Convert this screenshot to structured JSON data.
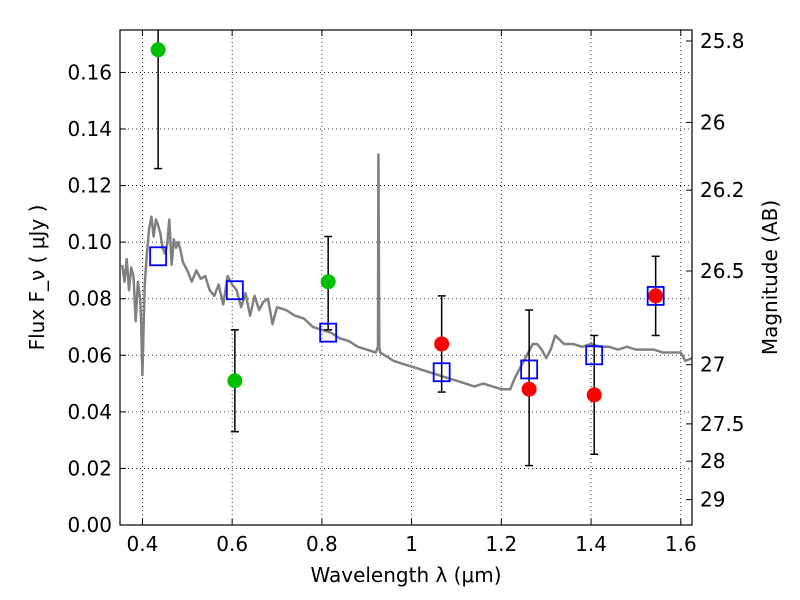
{
  "chart_data": {
    "type": "scatter",
    "xlabel": "Wavelength  λ (μm)",
    "ylabel": "Flux  F_ν  ( μJy )",
    "y2label": "Magnitude (AB)",
    "xlim": [
      0.35,
      1.625
    ],
    "ylim": [
      0.0,
      0.175
    ],
    "grid": true,
    "x_ticks": [
      "0.4",
      "0.6",
      "0.8",
      "1",
      "1.2",
      "1.4",
      "1.6"
    ],
    "x_tick_values": [
      0.4,
      0.6,
      0.8,
      1.0,
      1.2,
      1.4,
      1.6
    ],
    "y_ticks": [
      "0.00",
      "0.02",
      "0.04",
      "0.06",
      "0.08",
      "0.10",
      "0.12",
      "0.14",
      "0.16"
    ],
    "y_tick_values": [
      0.0,
      0.02,
      0.04,
      0.06,
      0.08,
      0.1,
      0.12,
      0.14,
      0.16
    ],
    "mag_ticks": [
      "25.8",
      "26",
      "26.2",
      "26.5",
      "27",
      "27.5",
      "28",
      "29"
    ],
    "mag_tick_values": [
      25.8,
      26.0,
      26.2,
      26.5,
      27.0,
      27.5,
      28.0,
      29.0
    ],
    "series": [
      {
        "kind": "errorbar",
        "color": "#00c000",
        "x": [
          0.435,
          0.606,
          0.814
        ],
        "y": [
          0.168,
          0.051,
          0.086
        ],
        "yerr_low": [
          0.126,
          0.033,
          0.069
        ],
        "yerr_high": [
          0.175,
          0.069,
          0.102
        ]
      },
      {
        "kind": "errorbar",
        "color": "#ff0000",
        "x": [
          1.067,
          1.262,
          1.407,
          1.544
        ],
        "y": [
          0.064,
          0.048,
          0.046,
          0.081
        ],
        "yerr_low": [
          0.047,
          0.021,
          0.025,
          0.067
        ],
        "yerr_high": [
          0.081,
          0.076,
          0.067,
          0.095
        ]
      },
      {
        "kind": "model-points",
        "color": "#0000ff",
        "x": [
          0.435,
          0.606,
          0.814,
          1.067,
          1.262,
          1.407,
          1.544
        ],
        "y": [
          0.095,
          0.083,
          0.068,
          0.054,
          0.055,
          0.06,
          0.081
        ]
      },
      {
        "kind": "spectrum",
        "color": "#808080",
        "x": [
          0.355,
          0.36,
          0.365,
          0.37,
          0.375,
          0.38,
          0.385,
          0.39,
          0.395,
          0.397,
          0.4,
          0.405,
          0.41,
          0.415,
          0.42,
          0.425,
          0.43,
          0.435,
          0.44,
          0.445,
          0.45,
          0.455,
          0.46,
          0.465,
          0.47,
          0.475,
          0.48,
          0.485,
          0.49,
          0.5,
          0.51,
          0.52,
          0.53,
          0.54,
          0.55,
          0.56,
          0.57,
          0.58,
          0.59,
          0.6,
          0.61,
          0.62,
          0.63,
          0.64,
          0.65,
          0.66,
          0.67,
          0.68,
          0.69,
          0.7,
          0.72,
          0.74,
          0.76,
          0.78,
          0.8,
          0.82,
          0.84,
          0.86,
          0.88,
          0.9,
          0.92,
          0.925,
          0.926,
          0.928,
          0.93,
          0.94,
          0.96,
          0.98,
          1.0,
          1.02,
          1.04,
          1.06,
          1.08,
          1.1,
          1.12,
          1.14,
          1.16,
          1.18,
          1.2,
          1.22,
          1.23,
          1.24,
          1.25,
          1.26,
          1.27,
          1.28,
          1.29,
          1.3,
          1.31,
          1.32,
          1.34,
          1.36,
          1.38,
          1.4,
          1.42,
          1.44,
          1.46,
          1.48,
          1.5,
          1.52,
          1.54,
          1.56,
          1.58,
          1.6,
          1.61,
          1.625
        ],
        "y": [
          0.092,
          0.086,
          0.094,
          0.083,
          0.091,
          0.088,
          0.072,
          0.086,
          0.08,
          0.072,
          0.053,
          0.085,
          0.096,
          0.105,
          0.109,
          0.102,
          0.108,
          0.106,
          0.103,
          0.098,
          0.096,
          0.099,
          0.108,
          0.092,
          0.101,
          0.098,
          0.1,
          0.097,
          0.093,
          0.09,
          0.086,
          0.09,
          0.087,
          0.088,
          0.083,
          0.081,
          0.085,
          0.078,
          0.088,
          0.085,
          0.083,
          0.077,
          0.082,
          0.074,
          0.081,
          0.076,
          0.079,
          0.08,
          0.071,
          0.077,
          0.076,
          0.074,
          0.073,
          0.07,
          0.069,
          0.068,
          0.066,
          0.065,
          0.063,
          0.062,
          0.061,
          0.063,
          0.131,
          0.063,
          0.061,
          0.06,
          0.058,
          0.057,
          0.056,
          0.055,
          0.054,
          0.053,
          0.052,
          0.051,
          0.05,
          0.049,
          0.05,
          0.049,
          0.048,
          0.048,
          0.052,
          0.055,
          0.058,
          0.061,
          0.064,
          0.064,
          0.062,
          0.059,
          0.062,
          0.067,
          0.064,
          0.064,
          0.063,
          0.064,
          0.063,
          0.063,
          0.062,
          0.063,
          0.062,
          0.062,
          0.062,
          0.061,
          0.061,
          0.061,
          0.058,
          0.059
        ]
      }
    ]
  }
}
